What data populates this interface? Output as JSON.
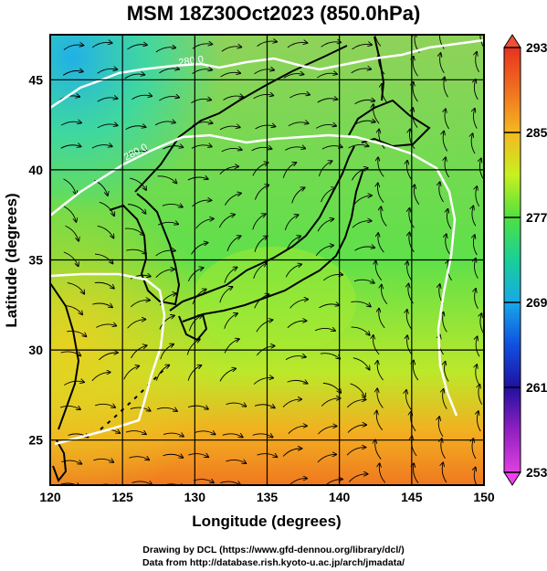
{
  "title": "MSM 18Z30Oct2023 (850.0hPa)",
  "map": {
    "lon_range": [
      120,
      150
    ],
    "lat_range": [
      22.5,
      47.5
    ],
    "x_ticks": [
      "120",
      "125",
      "130",
      "135",
      "140",
      "145",
      "150"
    ],
    "y_ticks": [
      "25",
      "30",
      "35",
      "40",
      "45"
    ],
    "xlabel": "Longitude (degrees)",
    "ylabel": "Latitude  (degrees)",
    "isotherm_labels": [
      "280.0",
      "280.0"
    ],
    "field": "temperature (K) with streamlines"
  },
  "colorbar": {
    "labels": [
      "293",
      "285",
      "277",
      "269",
      "261",
      "253"
    ],
    "min": 253,
    "max": 293,
    "colors_top_to_bottom": [
      "#e83220",
      "#f07020",
      "#f4b820",
      "#c8f020",
      "#50e040",
      "#18d098",
      "#18a8e8",
      "#1050e0",
      "#2010a0",
      "#9020c0",
      "#e040e0"
    ]
  },
  "credits": {
    "line1": "Drawing by DCL (https://www.gfd-dennou.org/library/dcl/)",
    "line2": "Data from http://database.rish.kyoto-u.ac.jp/arch/jmadata/"
  }
}
